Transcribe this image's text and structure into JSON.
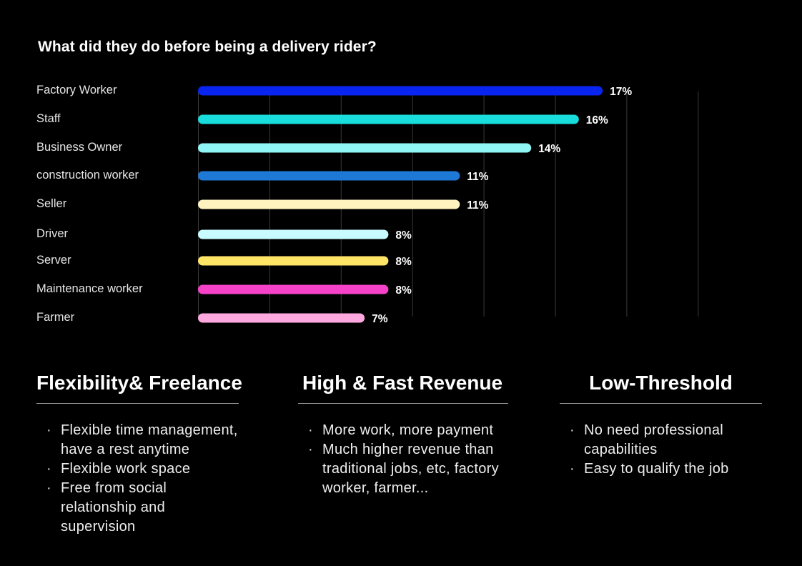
{
  "chart_data": {
    "type": "bar",
    "orientation": "horizontal",
    "title": "What did they do before being a delivery rider?",
    "categories": [
      "Factory Worker",
      "Staff",
      "Business Owner",
      "construction worker",
      "Seller",
      "Driver",
      "Server",
      "Maintenance worker",
      "Farmer"
    ],
    "values": [
      17,
      16,
      14,
      11,
      11,
      8,
      8,
      8,
      7
    ],
    "value_labels": [
      "17%",
      "16%",
      "14%",
      "11%",
      "11%",
      "8%",
      "8%",
      "8%",
      "7%"
    ],
    "colors": [
      "#0a24f0",
      "#19dcdc",
      "#8ff5f5",
      "#1e78d6",
      "#fff3c0",
      "#c8fbff",
      "#ffe566",
      "#f542c8",
      "#ffa8e0"
    ],
    "xlim": [
      0,
      21
    ],
    "gridlines": true,
    "legend": "none"
  },
  "sections": [
    {
      "title": "Flexibility& Freelance",
      "items": [
        "Flexible time management, have a rest anytime",
        "Flexible work space",
        "Free from social relationship and supervision"
      ]
    },
    {
      "title": "High & Fast Revenue",
      "items": [
        "More work, more payment",
        "Much higher revenue than traditional jobs, etc, factory worker, farmer..."
      ]
    },
    {
      "title": "Low-Threshold",
      "items": [
        "No need professional capabilities",
        "Easy to qualify the job"
      ]
    }
  ],
  "bullet_symbol": "·"
}
